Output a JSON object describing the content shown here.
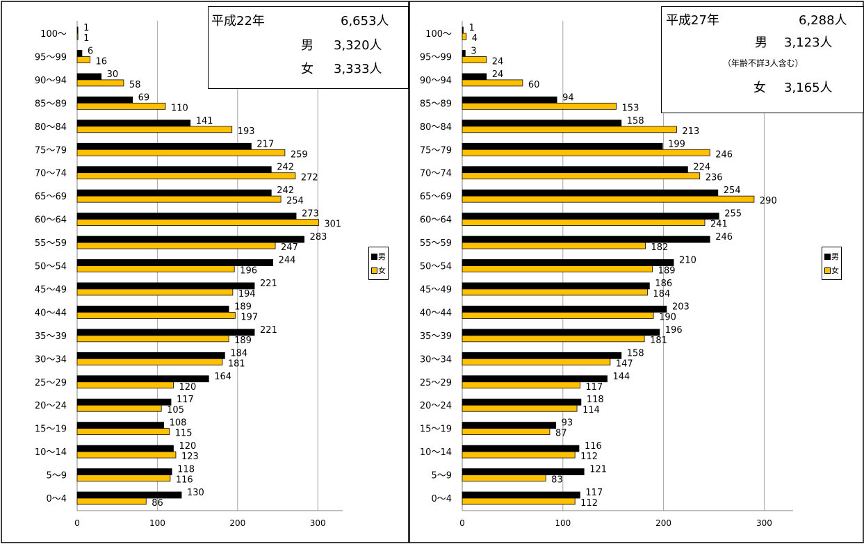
{
  "chart_data": [
    {
      "type": "bar",
      "orientation": "horizontal",
      "categories": [
        "0～4",
        "5～9",
        "10～14",
        "15～19",
        "20～24",
        "25～29",
        "30～34",
        "35～39",
        "40～44",
        "45～49",
        "50～54",
        "55～59",
        "60～64",
        "65～69",
        "70～74",
        "75～79",
        "80～84",
        "85～89",
        "90～94",
        "95～99",
        "100～"
      ],
      "series": [
        {
          "name": "男",
          "color": "#000000",
          "values": [
            130,
            118,
            120,
            108,
            117,
            164,
            184,
            221,
            189,
            221,
            244,
            283,
            273,
            242,
            242,
            217,
            141,
            69,
            30,
            6,
            1
          ]
        },
        {
          "name": "女",
          "color": "#FFC000",
          "values": [
            86,
            116,
            123,
            115,
            105,
            120,
            181,
            189,
            197,
            194,
            196,
            247,
            301,
            254,
            272,
            259,
            193,
            110,
            58,
            16,
            1
          ]
        }
      ],
      "xlim": [
        0,
        330
      ],
      "x_ticks": [
        "0",
        "100",
        "200",
        "300"
      ],
      "grid": "vertical",
      "legend": "right",
      "info": {
        "year": "平成22年",
        "total": "6,653人",
        "male_label": "男",
        "male": "3,320人",
        "female_label": "女",
        "female": "3,333人"
      }
    },
    {
      "type": "bar",
      "orientation": "horizontal",
      "categories": [
        "0～4",
        "5～9",
        "10～14",
        "15～19",
        "20～24",
        "25～29",
        "30～34",
        "35～39",
        "40～44",
        "45～49",
        "50～54",
        "55～59",
        "60～64",
        "65～69",
        "70～74",
        "75～79",
        "80～84",
        "85～89",
        "90～94",
        "95～99",
        "100～"
      ],
      "series": [
        {
          "name": "男",
          "color": "#000000",
          "values": [
            117,
            121,
            116,
            93,
            118,
            144,
            158,
            196,
            203,
            186,
            210,
            246,
            255,
            254,
            224,
            199,
            158,
            94,
            24,
            3,
            1
          ]
        },
        {
          "name": "女",
          "color": "#FFC000",
          "values": [
            112,
            83,
            112,
            87,
            114,
            117,
            147,
            181,
            190,
            184,
            189,
            182,
            241,
            290,
            236,
            246,
            213,
            153,
            60,
            24,
            4
          ]
        }
      ],
      "xlim": [
        0,
        330
      ],
      "x_ticks": [
        "0",
        "100",
        "200",
        "300"
      ],
      "grid": "vertical",
      "legend": "right",
      "info": {
        "year": "平成27年",
        "total": "6,288人",
        "male_label": "男",
        "male": "3,123人",
        "note": "（年齢不詳3人含む）",
        "female_label": "女",
        "female": "3,165人"
      }
    }
  ]
}
